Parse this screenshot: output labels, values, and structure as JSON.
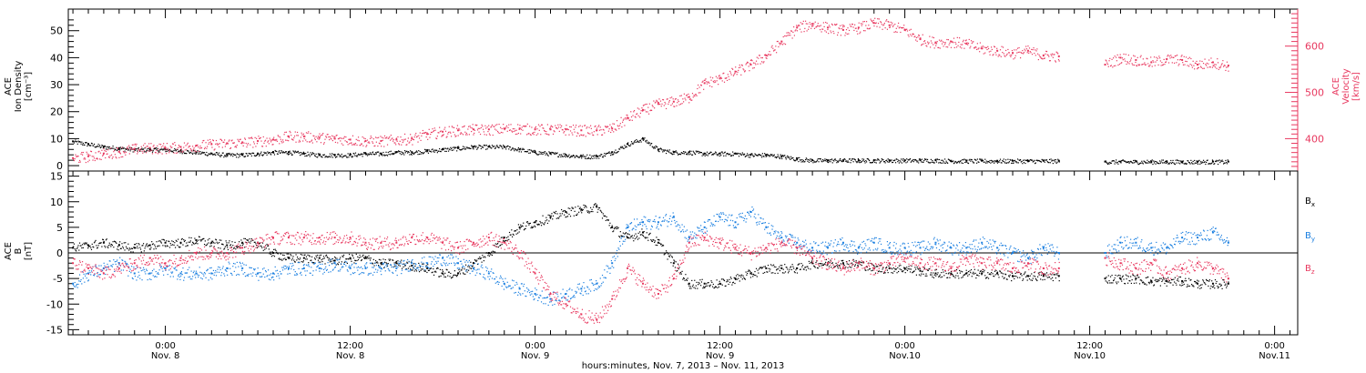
{
  "figure": {
    "xlabel": "hours:minutes, Nov. 7, 2013 – Nov. 11, 2013",
    "x_ticks": [
      {
        "hour": 0,
        "time": "0:00",
        "date": "Nov. 8"
      },
      {
        "hour": 12,
        "time": "12:00",
        "date": "Nov. 8"
      },
      {
        "hour": 24,
        "time": "0:00",
        "date": "Nov. 9"
      },
      {
        "hour": 36,
        "time": "12:00",
        "date": "Nov. 9"
      },
      {
        "hour": 48,
        "time": "0:00",
        "date": "Nov.10"
      },
      {
        "hour": 60,
        "time": "12:00",
        "date": "Nov.10"
      },
      {
        "hour": 72,
        "time": "0:00",
        "date": "Nov.11"
      }
    ]
  },
  "colors": {
    "black": "#000000",
    "red": "#e8385f",
    "blue": "#1a7fe0",
    "axis_right": "#e8385f"
  },
  "chart_data": [
    {
      "type": "scatter",
      "panel": "top",
      "xlim_hours": [
        -6.3,
        73.5
      ],
      "left_axis": {
        "label_lines": [
          "ACE",
          "Ion Density",
          "[cm⁻³]"
        ],
        "ylim": [
          -2,
          58
        ],
        "ticks": [
          0,
          10,
          20,
          30,
          40,
          50
        ]
      },
      "right_axis": {
        "label_lines": [
          "ACE",
          "Velocity",
          "[km/s]"
        ],
        "ylim": [
          330,
          680
        ],
        "ticks": [
          400,
          500,
          600
        ]
      },
      "series": [
        {
          "name": "",
          "axis": "left",
          "color": "black",
          "x": [
            -6,
            -5,
            -4,
            -3,
            -2,
            -1,
            0,
            1,
            2,
            3,
            4,
            5,
            6,
            7,
            8,
            9,
            10,
            11,
            12,
            13,
            14,
            15,
            16,
            17,
            18,
            19,
            20,
            21,
            22,
            23,
            24,
            25,
            26,
            27,
            28,
            29,
            30,
            31,
            32,
            33,
            34,
            35,
            36,
            37,
            38,
            39,
            40,
            41,
            42,
            43,
            44,
            45,
            46,
            47,
            48,
            49,
            50,
            51,
            52,
            53,
            54,
            55,
            56,
            57,
            58,
            61,
            62,
            63,
            64,
            65,
            66,
            67,
            68,
            69
          ],
          "y": [
            9,
            8,
            7,
            6.5,
            6,
            6,
            6,
            5.5,
            5,
            4.5,
            4,
            4,
            4.5,
            5,
            5,
            4.5,
            4,
            4,
            4,
            4.5,
            4.5,
            5,
            5,
            5.5,
            6,
            6.5,
            7,
            7,
            7,
            6,
            5,
            4.5,
            4,
            3.5,
            3.5,
            5,
            8,
            10,
            6,
            5,
            5,
            4.5,
            4.5,
            4.5,
            4,
            4,
            3.5,
            2.5,
            2,
            2,
            2,
            2,
            2,
            2,
            2,
            2,
            2,
            1.8,
            1.8,
            1.8,
            1.8,
            1.8,
            1.8,
            1.8,
            1.8,
            1.5,
            1.5,
            1.5,
            1.5,
            1.5,
            1.5,
            1.5,
            1.5,
            1.5
          ]
        },
        {
          "name": "",
          "axis": "right",
          "color": "red",
          "x": [
            -6,
            -5,
            -4,
            -3,
            -2,
            -1,
            0,
            1,
            2,
            3,
            4,
            5,
            6,
            7,
            8,
            9,
            10,
            11,
            12,
            13,
            14,
            15,
            16,
            17,
            18,
            19,
            20,
            21,
            22,
            23,
            24,
            25,
            26,
            27,
            28,
            29,
            30,
            31,
            32,
            33,
            34,
            35,
            36,
            37,
            38,
            39,
            40,
            41,
            42,
            43,
            44,
            45,
            46,
            47,
            48,
            49,
            50,
            51,
            52,
            53,
            54,
            55,
            56,
            57,
            58,
            61,
            62,
            63,
            64,
            65,
            66,
            67,
            68,
            69
          ],
          "y": [
            358,
            362,
            368,
            372,
            378,
            380,
            380,
            382,
            385,
            388,
            390,
            392,
            395,
            398,
            405,
            405,
            402,
            400,
            398,
            395,
            395,
            398,
            400,
            410,
            415,
            418,
            420,
            420,
            422,
            422,
            420,
            420,
            420,
            418,
            418,
            422,
            445,
            462,
            475,
            480,
            490,
            520,
            530,
            545,
            560,
            580,
            610,
            640,
            648,
            640,
            635,
            640,
            650,
            645,
            635,
            615,
            608,
            610,
            605,
            595,
            590,
            585,
            590,
            580,
            578,
            560,
            575,
            570,
            565,
            572,
            570,
            560,
            565,
            558
          ]
        }
      ]
    },
    {
      "type": "scatter",
      "panel": "bottom",
      "xlim_hours": [
        -6.3,
        73.5
      ],
      "left_axis": {
        "label_lines": [
          "ACE",
          "B",
          "[nT]"
        ],
        "ylim": [
          -16,
          16
        ],
        "ticks": [
          -15,
          -10,
          -5,
          0,
          5,
          10,
          15
        ]
      },
      "legend": {
        "placement": "right",
        "entries": [
          {
            "text": "B",
            "sub": "x",
            "color": "black"
          },
          {
            "text": "B",
            "sub": "y",
            "color": "blue"
          },
          {
            "text": "B",
            "sub": "z",
            "color": "red"
          }
        ]
      },
      "series": [
        {
          "name": "Bx",
          "color": "black",
          "x": [
            -6,
            -5,
            -4,
            -3,
            -2,
            -1,
            0,
            1,
            2,
            3,
            4,
            5,
            6,
            7,
            8,
            9,
            10,
            11,
            12,
            13,
            14,
            15,
            16,
            17,
            18,
            19,
            20,
            21,
            22,
            23,
            24,
            25,
            26,
            27,
            28,
            29,
            30,
            31,
            32,
            33,
            34,
            35,
            36,
            37,
            38,
            39,
            40,
            41,
            42,
            43,
            44,
            45,
            46,
            47,
            48,
            49,
            50,
            51,
            52,
            53,
            54,
            55,
            56,
            57,
            58,
            61,
            62,
            63,
            64,
            65,
            66,
            67,
            68,
            69
          ],
          "y": [
            1,
            1.5,
            2,
            1.5,
            1,
            1.5,
            2,
            2,
            2.5,
            2,
            1.5,
            2,
            2,
            0,
            -1,
            -1,
            -1,
            -1.5,
            -1,
            -1,
            -2,
            -2,
            -2.5,
            -3,
            -4,
            -4,
            -2,
            0,
            3,
            5,
            6,
            7,
            8,
            8.5,
            9,
            5,
            3,
            4,
            2,
            -2,
            -6,
            -6,
            -6,
            -5,
            -4,
            -3,
            -3,
            -3,
            -2,
            -2,
            -2,
            -2,
            -3,
            -3,
            -3,
            -3.5,
            -4,
            -4,
            -4,
            -4,
            -4,
            -4.5,
            -4.5,
            -4.5,
            -4.5,
            -5,
            -5,
            -5,
            -5.5,
            -5.5,
            -5.5,
            -6,
            -6,
            -6
          ]
        },
        {
          "name": "By",
          "color": "blue",
          "x": [
            -6,
            -5,
            -4,
            -3,
            -2,
            -1,
            0,
            1,
            2,
            3,
            4,
            5,
            6,
            7,
            8,
            9,
            10,
            11,
            12,
            13,
            14,
            15,
            16,
            17,
            18,
            19,
            20,
            21,
            22,
            23,
            24,
            25,
            26,
            27,
            28,
            29,
            30,
            31,
            32,
            33,
            34,
            35,
            36,
            37,
            38,
            39,
            40,
            41,
            42,
            43,
            44,
            45,
            46,
            47,
            48,
            49,
            50,
            51,
            52,
            53,
            54,
            55,
            56,
            57,
            58,
            61,
            62,
            63,
            64,
            65,
            66,
            67,
            68,
            69
          ],
          "y": [
            -6,
            -4,
            -3,
            -2,
            -4,
            -4,
            -3,
            -4,
            -4,
            -4,
            -3,
            -3,
            -4,
            -4,
            -3,
            -3,
            -3,
            -2,
            -3,
            -3,
            -3,
            -3,
            -2,
            -2,
            -1,
            -2,
            -3,
            -4,
            -6,
            -7,
            -8,
            -9,
            -8,
            -7,
            -6,
            -2,
            5,
            6,
            6,
            7,
            3,
            5,
            7,
            6,
            8,
            5,
            3,
            2,
            1,
            1,
            2,
            1,
            2,
            1,
            1,
            1,
            2,
            1,
            1,
            2,
            1,
            0,
            -1,
            1,
            0,
            0,
            2,
            2,
            1,
            1,
            3,
            3,
            4,
            2
          ]
        },
        {
          "name": "Bz",
          "color": "red",
          "x": [
            -6,
            -5,
            -4,
            -3,
            -2,
            -1,
            0,
            1,
            2,
            3,
            4,
            5,
            6,
            7,
            8,
            9,
            10,
            11,
            12,
            13,
            14,
            15,
            16,
            17,
            18,
            19,
            20,
            21,
            22,
            23,
            24,
            25,
            26,
            27,
            28,
            29,
            30,
            31,
            32,
            33,
            34,
            35,
            36,
            37,
            38,
            39,
            40,
            41,
            42,
            43,
            44,
            45,
            46,
            47,
            48,
            49,
            50,
            51,
            52,
            53,
            54,
            55,
            56,
            57,
            58,
            61,
            62,
            63,
            64,
            65,
            66,
            67,
            68,
            69
          ],
          "y": [
            -2,
            -3,
            -4,
            -3,
            -2,
            -1,
            -2,
            -1,
            0,
            0,
            0,
            1,
            2,
            3,
            3,
            3,
            3,
            3,
            3,
            2,
            2,
            2,
            3,
            3,
            2,
            1,
            2,
            3,
            2,
            0,
            -4,
            -8,
            -10,
            -12,
            -13,
            -9,
            -3,
            -6,
            -8,
            -5,
            2,
            3,
            2,
            1,
            0,
            1,
            2,
            1,
            -1,
            -2,
            -3,
            -2,
            -3,
            -2,
            -1,
            -2,
            -2,
            -3,
            -1,
            -2,
            -2,
            -3,
            -2,
            -3,
            -3,
            -1,
            -2,
            -3,
            -2,
            -4,
            -3,
            -2,
            -3,
            -5
          ]
        }
      ]
    }
  ]
}
